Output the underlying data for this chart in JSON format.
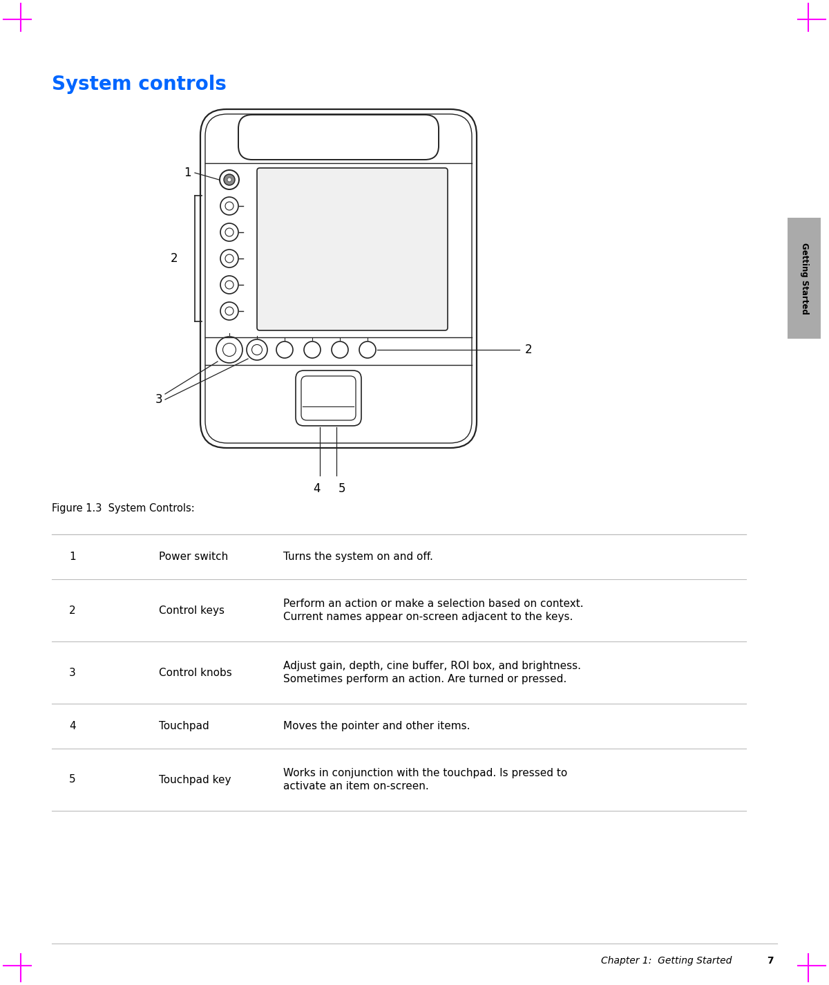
{
  "title": "System controls",
  "title_color": "#0066FF",
  "title_fontsize": 20,
  "figure_caption": "Figure 1.3  System Controls:",
  "caption_fontsize": 10.5,
  "bg_color": "#FFFFFF",
  "tab_label": "Getting Started",
  "tab_color": "#AAAAAA",
  "tab_text_color": "#000000",
  "footer_text": "Chapter 1:  Getting Started",
  "footer_page": "7",
  "table_rows": [
    {
      "num": "1",
      "name": "Power switch",
      "desc": "Turns the system on and off."
    },
    {
      "num": "2",
      "name": "Control keys",
      "desc": "Perform an action or make a selection based on context.\nCurrent names appear on-screen adjacent to the keys."
    },
    {
      "num": "3",
      "name": "Control knobs",
      "desc": "Adjust gain, depth, cine buffer, ROI box, and brightness.\nSometimes perform an action. Are turned or pressed."
    },
    {
      "num": "4",
      "name": "Touchpad",
      "desc": "Moves the pointer and other items."
    },
    {
      "num": "5",
      "name": "Touchpad key",
      "desc": "Works in conjunction with the touchpad. Is pressed to\nactivate an item on-screen."
    }
  ],
  "device_color": "#222222",
  "screen_color": "#F0F0F0",
  "margin_marks_color": "#FF00FF",
  "line_color": "#BBBBBB",
  "table_line_color": "#BBBBBB"
}
